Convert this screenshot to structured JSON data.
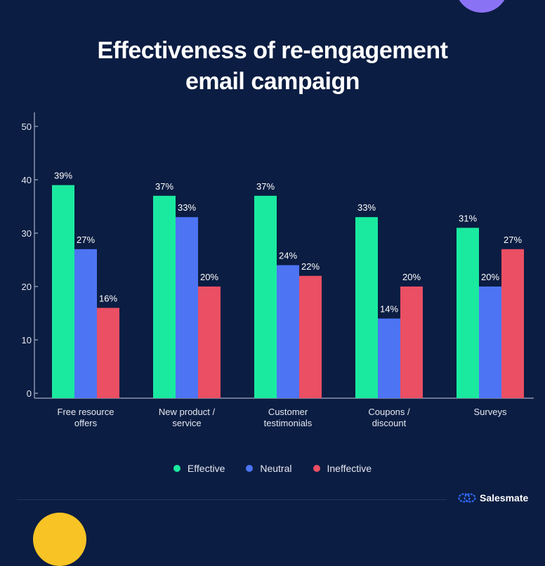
{
  "title": {
    "line1": "Effectiveness of re-engagement",
    "line2": "email campaign"
  },
  "brand": {
    "name": "Salesmate",
    "icon": "salesmate-logo-icon"
  },
  "colors": {
    "background": "#0b1d42",
    "effective": "#1aeaa0",
    "neutral": "#4d74f3",
    "ineffective": "#ea4f64",
    "axis": "#8a93ad",
    "text": "#ffffff"
  },
  "chart_data": {
    "type": "bar",
    "title": "Effectiveness of re-engagement email campaign",
    "xlabel": "",
    "ylabel": "",
    "ylim": [
      0,
      50
    ],
    "yticks": [
      0,
      10,
      20,
      30,
      40,
      50
    ],
    "grid": false,
    "legend_position": "bottom",
    "categories": [
      [
        "Free resource",
        "offers"
      ],
      [
        "New product /",
        "service"
      ],
      [
        "Customer",
        "testimonials"
      ],
      [
        "Coupons /",
        "discount"
      ],
      [
        "Surveys"
      ]
    ],
    "series": [
      {
        "name": "Effective",
        "color": "#1aeaa0",
        "values": [
          39,
          37,
          37,
          33,
          31
        ],
        "labels": [
          "39%",
          "37%",
          "37%",
          "33%",
          "31%"
        ]
      },
      {
        "name": "Neutral",
        "color": "#4d74f3",
        "values": [
          27,
          33,
          24,
          14,
          20
        ],
        "labels": [
          "27%",
          "33%",
          "24%",
          "14%",
          "20%"
        ]
      },
      {
        "name": "Ineffective",
        "color": "#ea4f64",
        "values": [
          16,
          20,
          22,
          20,
          27
        ],
        "labels": [
          "16%",
          "20%",
          "22%",
          "20%",
          "27%"
        ]
      }
    ]
  }
}
